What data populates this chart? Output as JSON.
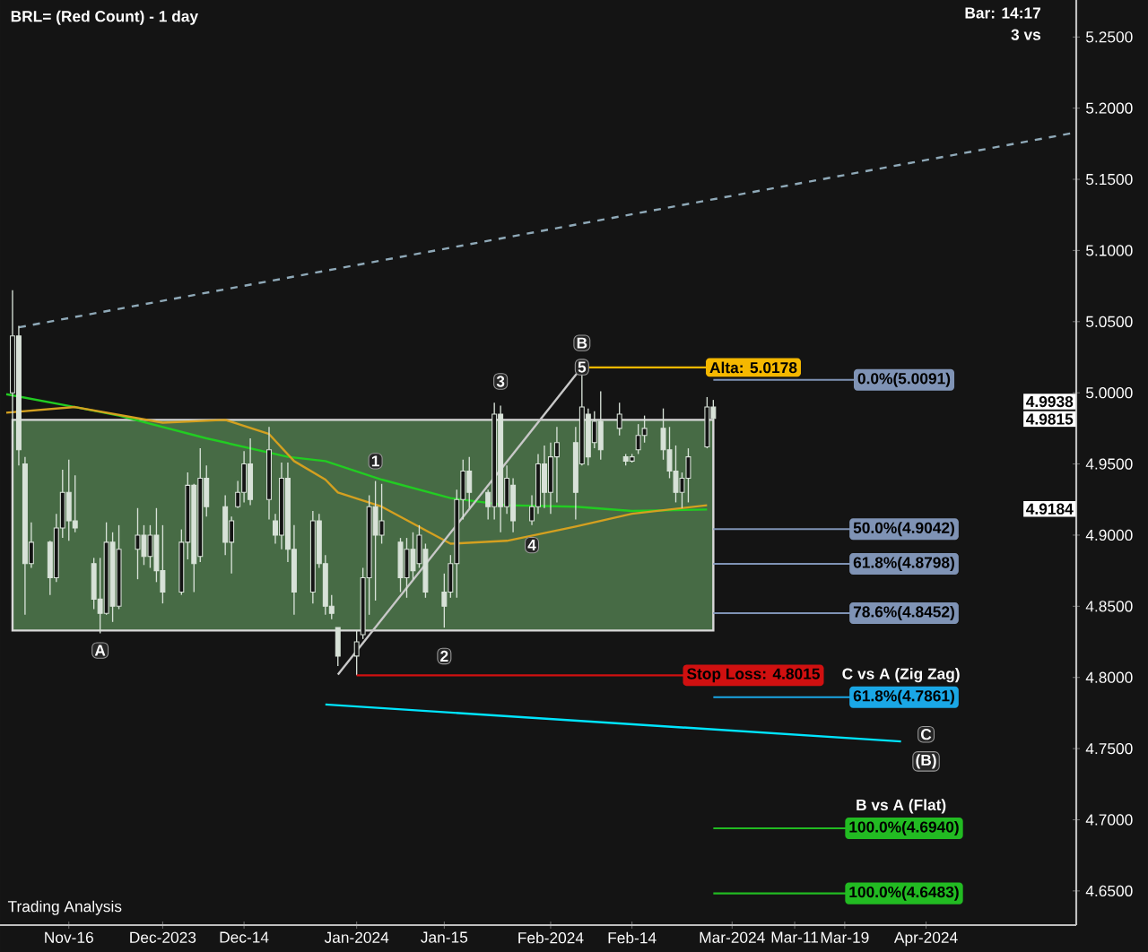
{
  "chart_data": {
    "type": "candlestick",
    "title": "BRL= (Red Count) - 1 day",
    "color": "#d8e2d8",
    "x": [
      "2023-11-07",
      "2023-11-08",
      "2023-11-09",
      "2023-11-10",
      "2023-11-13",
      "2023-11-14",
      "2023-11-15",
      "2023-11-16",
      "2023-11-17",
      "2023-11-20",
      "2023-11-21",
      "2023-11-22",
      "2023-11-23",
      "2023-11-24",
      "2023-11-27",
      "2023-11-28",
      "2023-11-29",
      "2023-11-30",
      "2023-12-01",
      "2023-12-04",
      "2023-12-05",
      "2023-12-06",
      "2023-12-07",
      "2023-12-08",
      "2023-12-11",
      "2023-12-12",
      "2023-12-13",
      "2023-12-14",
      "2023-12-15",
      "2023-12-18",
      "2023-12-19",
      "2023-12-20",
      "2023-12-21",
      "2023-12-22",
      "2023-12-25",
      "2023-12-26",
      "2023-12-27",
      "2023-12-28",
      "2023-12-29",
      "2024-01-01",
      "2024-01-02",
      "2024-01-03",
      "2024-01-04",
      "2024-01-05",
      "2024-01-08",
      "2024-01-09",
      "2024-01-10",
      "2024-01-11",
      "2024-01-12",
      "2024-01-15",
      "2024-01-16",
      "2024-01-17",
      "2024-01-18",
      "2024-01-19",
      "2024-01-22",
      "2024-01-23",
      "2024-01-24",
      "2024-01-25",
      "2024-01-26",
      "2024-01-29",
      "2024-01-30",
      "2024-01-31",
      "2024-02-01",
      "2024-02-02",
      "2024-02-05",
      "2024-02-06",
      "2024-02-07",
      "2024-02-08",
      "2024-02-09",
      "2024-02-12",
      "2024-02-13",
      "2024-02-14",
      "2024-02-15",
      "2024-02-16",
      "2024-02-19",
      "2024-02-20",
      "2024-02-21",
      "2024-02-22",
      "2024-02-23",
      "2024-02-26",
      "2024-02-27"
    ],
    "ohlc": [
      [
        5.0,
        5.072,
        4.971,
        5.04
      ],
      [
        5.04,
        5.047,
        4.949,
        4.96
      ],
      [
        4.95,
        4.955,
        4.844,
        4.88
      ],
      [
        4.88,
        4.909,
        4.877,
        4.895
      ],
      [
        4.895,
        4.896,
        4.858,
        4.87
      ],
      [
        4.87,
        4.915,
        4.867,
        4.905
      ],
      [
        4.905,
        4.946,
        4.898,
        4.93
      ],
      [
        4.93,
        4.953,
        4.896,
        4.91
      ],
      [
        4.91,
        4.942,
        4.902,
        4.905
      ],
      [
        4.88,
        4.884,
        4.848,
        4.855
      ],
      [
        4.855,
        4.884,
        4.831,
        4.845
      ],
      [
        4.845,
        4.909,
        4.844,
        4.895
      ],
      [
        4.895,
        4.902,
        4.839,
        4.85
      ],
      [
        4.85,
        4.907,
        4.848,
        4.89
      ],
      [
        4.89,
        4.919,
        4.869,
        4.9
      ],
      [
        4.9,
        4.907,
        4.879,
        4.885
      ],
      [
        4.885,
        4.907,
        4.877,
        4.9
      ],
      [
        4.9,
        4.919,
        4.867,
        4.875
      ],
      [
        4.875,
        4.907,
        4.852,
        4.86
      ],
      [
        4.86,
        4.904,
        4.858,
        4.895
      ],
      [
        4.895,
        4.944,
        4.883,
        4.935
      ],
      [
        4.935,
        4.936,
        4.86,
        4.88
      ],
      [
        4.885,
        4.961,
        4.881,
        4.94
      ],
      [
        4.94,
        4.949,
        4.913,
        4.92
      ],
      [
        4.92,
        4.928,
        4.886,
        4.895
      ],
      [
        4.895,
        4.913,
        4.873,
        4.91
      ],
      [
        4.92,
        4.938,
        4.919,
        4.93
      ],
      [
        4.93,
        4.959,
        4.923,
        4.95
      ],
      [
        4.95,
        4.968,
        4.921,
        4.925
      ],
      [
        4.925,
        4.976,
        4.911,
        4.96
      ],
      [
        4.91,
        4.915,
        4.894,
        4.9
      ],
      [
        4.9,
        4.951,
        4.89,
        4.94
      ],
      [
        4.94,
        4.951,
        4.881,
        4.89
      ],
      [
        4.89,
        4.907,
        4.844,
        4.86
      ],
      [
        4.86,
        4.917,
        4.852,
        4.91
      ],
      [
        4.91,
        4.915,
        4.877,
        4.88
      ],
      [
        4.88,
        4.886,
        4.844,
        4.85
      ],
      [
        4.85,
        4.858,
        4.841,
        4.845
      ],
      [
        4.835,
        4.835,
        4.808,
        4.815
      ],
      [
        4.815,
        4.833,
        4.8015,
        4.825
      ],
      [
        4.83,
        4.877,
        4.827,
        4.87
      ],
      [
        4.87,
        4.928,
        4.844,
        4.92
      ],
      [
        4.92,
        4.938,
        4.854,
        4.9
      ],
      [
        4.9,
        4.936,
        4.894,
        4.91
      ],
      [
        4.895,
        4.898,
        4.86,
        4.87
      ],
      [
        4.87,
        4.898,
        4.856,
        4.89
      ],
      [
        4.89,
        4.902,
        4.869,
        4.875
      ],
      [
        4.88,
        4.907,
        4.877,
        4.9
      ],
      [
        4.89,
        4.894,
        4.856,
        4.86
      ],
      [
        4.86,
        4.873,
        4.835,
        4.85
      ],
      [
        4.86,
        4.886,
        4.856,
        4.88
      ],
      [
        4.88,
        4.932,
        4.856,
        4.925
      ],
      [
        4.925,
        4.953,
        4.911,
        4.945
      ],
      [
        4.945,
        4.955,
        4.919,
        4.93
      ],
      [
        4.93,
        4.932,
        4.911,
        4.92
      ],
      [
        4.92,
        4.993,
        4.911,
        4.985
      ],
      [
        4.985,
        4.991,
        4.902,
        4.92
      ],
      [
        4.92,
        4.949,
        4.915,
        4.94
      ],
      [
        4.935,
        4.94,
        4.902,
        4.91
      ],
      [
        4.91,
        4.928,
        4.907,
        4.92
      ],
      [
        4.92,
        4.957,
        4.915,
        4.95
      ],
      [
        4.95,
        4.963,
        4.919,
        4.93
      ],
      [
        4.93,
        4.965,
        4.915,
        4.955
      ],
      [
        4.955,
        4.976,
        4.923,
        4.965
      ],
      [
        4.965,
        4.976,
        4.911,
        4.93
      ],
      [
        4.95,
        5.0178,
        4.949,
        4.99
      ],
      [
        4.985,
        4.989,
        4.949,
        4.955
      ],
      [
        4.965,
        4.987,
        4.961,
        4.98
      ],
      [
        4.98,
        5.001,
        4.953,
        4.96
      ],
      [
        4.975,
        4.993,
        4.97,
        4.985
      ],
      [
        4.955,
        4.957,
        4.949,
        4.952
      ],
      [
        4.952,
        4.957,
        4.951,
        4.955
      ],
      [
        4.96,
        4.978,
        4.957,
        4.97
      ],
      [
        4.97,
        4.984,
        4.965,
        4.975
      ],
      [
        4.975,
        4.989,
        4.953,
        4.96
      ],
      [
        4.96,
        4.976,
        4.94,
        4.945
      ],
      [
        4.945,
        4.963,
        4.923,
        4.93
      ],
      [
        4.93,
        4.944,
        4.919,
        4.94
      ],
      [
        4.94,
        4.961,
        4.923,
        4.955
      ],
      [
        4.962,
        4.997,
        4.961,
        4.99
      ],
      [
        4.99,
        4.995,
        4.98,
        4.982
      ]
    ],
    "series": [
      {
        "type": "line",
        "color": "#22cc22",
        "x": [
          "2023-11-06",
          "2023-11-17",
          "2023-11-24",
          "2023-12-08",
          "2023-12-21",
          "2023-12-27",
          "2024-01-05",
          "2024-01-16",
          "2024-01-25",
          "2024-02-05",
          "2024-02-14",
          "2024-02-26"
        ],
        "values": [
          4.999,
          4.99,
          4.984,
          4.968,
          4.955,
          4.952,
          4.939,
          4.926,
          4.921,
          4.92,
          4.917,
          4.918
        ]
      },
      {
        "type": "line",
        "color": "#d4a020",
        "x": [
          "2023-11-06",
          "2023-11-17",
          "2023-12-01",
          "2023-12-11",
          "2023-12-18",
          "2023-12-22",
          "2023-12-27",
          "2023-12-29",
          "2024-01-05",
          "2024-01-16",
          "2024-01-25",
          "2024-02-05",
          "2024-02-14",
          "2024-02-26"
        ],
        "values": [
          4.986,
          4.99,
          4.979,
          4.981,
          4.971,
          4.952,
          4.939,
          4.93,
          4.92,
          4.894,
          4.896,
          4.906,
          4.915,
          4.921
        ]
      },
      {
        "type": "line",
        "color": "#8fa9b8",
        "line_style": "dashed",
        "x": [
          "2023-11-08",
          "2024-04-25"
        ],
        "values": [
          5.046,
          5.183
        ]
      },
      {
        "type": "line",
        "color": "#c8c8c8",
        "x": [
          "2023-12-29",
          "2024-02-06"
        ],
        "values": [
          4.802,
          5.018
        ]
      },
      {
        "type": "line",
        "color": "#00e5ff",
        "x": [
          "2024-03-28",
          "2023-12-27"
        ],
        "values": [
          4.755,
          4.781
        ]
      }
    ],
    "bands": [
      {
        "axis": "y",
        "from": 4.833,
        "to": 4.981,
        "color": "#476b45"
      }
    ],
    "ref_lines": [
      {
        "axis": "y",
        "value": 5.0091,
        "label": "0.0%(5.0091)",
        "color": "#7f93b5"
      },
      {
        "axis": "y",
        "value": 4.9042,
        "label": "50.0%(4.9042)",
        "color": "#7f93b5"
      },
      {
        "axis": "y",
        "value": 4.8798,
        "label": "61.8%(4.8798)",
        "color": "#7f93b5"
      },
      {
        "axis": "y",
        "value": 4.8452,
        "label": "78.6%(4.8452)",
        "color": "#7f93b5"
      },
      {
        "axis": "y",
        "value": 4.7861,
        "label": "61.8%(4.7861)",
        "color": "#1aa7e6"
      },
      {
        "axis": "y",
        "value": 4.694,
        "label": "100.0%(4.6940)",
        "color": "#22bb22"
      },
      {
        "axis": "y",
        "value": 4.6483,
        "label": "100.0%(4.6483)",
        "color": "#22bb22"
      },
      {
        "axis": "y",
        "value": 5.0178,
        "label": "Alta: 5.0178",
        "color": "#f5b800"
      },
      {
        "axis": "y",
        "value": 4.8015,
        "label": "Stop Loss: 4.8015",
        "color": "#d01010"
      }
    ],
    "annotations": [
      {
        "text": "1",
        "x": "2024-01-04",
        "y": 4.952
      },
      {
        "text": "2",
        "x": "2024-01-15",
        "y": 4.815
      },
      {
        "text": "3",
        "x": "2024-01-24",
        "y": 5.008
      },
      {
        "text": "4",
        "x": "2024-01-29",
        "y": 4.893
      },
      {
        "text": "5",
        "x": "2024-02-06",
        "y": 5.018
      },
      {
        "text": "A",
        "x": "2023-11-21",
        "y": 4.819
      },
      {
        "text": "B",
        "x": "2024-02-06",
        "y": 5.035
      },
      {
        "text": "C",
        "x": "2024-04-01",
        "y": 4.76
      },
      {
        "text": "(B)",
        "x": "2024-04-01",
        "y": 4.741
      },
      {
        "text": "C vs A (Zig Zag)",
        "x": "2024-03-28",
        "y": 4.7861
      },
      {
        "text": "B vs A (Flat)",
        "x": "2024-03-28",
        "y": 4.694
      },
      {
        "text": "4.9938",
        "y": 4.9938
      },
      {
        "text": "4.9815",
        "y": 4.9815
      },
      {
        "text": "4.9184",
        "y": 4.9184
      },
      "Bar: 14:17",
      "3 vs",
      "Trading Analysis"
    ],
    "xlim": [
      "2023-11-05",
      "2024-04-25"
    ],
    "xticks": [
      {
        "value": "2023-11-16",
        "label": "Nov-16"
      },
      {
        "value": "2023-12-01",
        "label": "Dec-2023"
      },
      {
        "value": "2023-12-14",
        "label": "Dec-14"
      },
      {
        "value": "2024-01-01",
        "label": "Jan-2024"
      },
      {
        "value": "2024-01-15",
        "label": "Jan-15"
      },
      {
        "value": "2024-02-01",
        "label": "Feb-2024"
      },
      {
        "value": "2024-02-14",
        "label": "Feb-14"
      },
      {
        "value": "2024-03-01",
        "label": "Mar-2024"
      },
      {
        "value": "2024-03-11",
        "label": "Mar-11"
      },
      {
        "value": "2024-03-19",
        "label": "Mar-19"
      },
      {
        "value": "2024-04-01",
        "label": "Apr-2024"
      }
    ],
    "ylim": [
      4.626,
      5.276
    ],
    "yticks": [
      {
        "value": 4.65,
        "label": "4.6500"
      },
      {
        "value": 4.7,
        "label": "4.7000"
      },
      {
        "value": 4.75,
        "label": "4.7500"
      },
      {
        "value": 4.8,
        "label": "4.8000"
      },
      {
        "value": 4.85,
        "label": "4.8500"
      },
      {
        "value": 4.9,
        "label": "4.9000"
      },
      {
        "value": 4.95,
        "label": "4.9500"
      },
      {
        "value": 5.0,
        "label": "5.0000"
      },
      {
        "value": 5.05,
        "label": "5.0500"
      },
      {
        "value": 5.1,
        "label": "5.1000"
      },
      {
        "value": 5.15,
        "label": "5.1500"
      },
      {
        "value": 5.2,
        "label": "5.2000"
      },
      {
        "value": 5.25,
        "label": "5.2500"
      }
    ]
  }
}
